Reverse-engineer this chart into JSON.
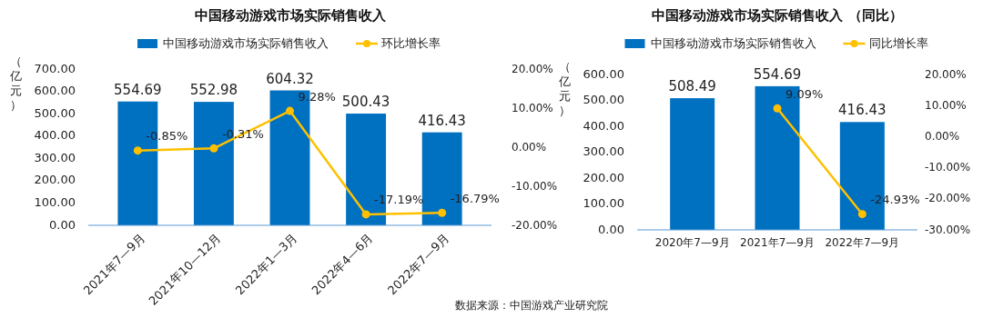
{
  "chart_data": [
    {
      "type": "bar",
      "title": "中国移动游戏市场实际销售收入",
      "ylabel": "（亿元）",
      "categories": [
        "2021年7—9月",
        "2021年10—12月",
        "2022年1—3月",
        "2022年4—6月",
        "2022年7—9月"
      ],
      "series": [
        {
          "name": "中国移动游戏市场实际销售收入",
          "color": "#0070c0",
          "values": [
            554.69,
            552.98,
            604.32,
            500.43,
            416.43
          ],
          "value_labels": [
            "554.69",
            "552.98",
            "604.32",
            "500.43",
            "416.43"
          ]
        },
        {
          "name": "环比增长率",
          "type": "line",
          "axis": "y2",
          "color": "#ffc000",
          "marker": "circle",
          "values": [
            -0.85,
            -0.31,
            9.28,
            -17.19,
            -16.79
          ],
          "value_labels": [
            "-0.85%",
            "-0.31%",
            "9.28%",
            "-17.19%",
            "-16.79%"
          ]
        }
      ],
      "ylim": [
        0,
        700
      ],
      "yticks": [
        {
          "value": 0,
          "label": "0.00"
        },
        {
          "value": 100,
          "label": "100.00"
        },
        {
          "value": 200,
          "label": "200.00"
        },
        {
          "value": 300,
          "label": "300.00"
        },
        {
          "value": 400,
          "label": "400.00"
        },
        {
          "value": 500,
          "label": "500.00"
        },
        {
          "value": 600,
          "label": "600.00"
        },
        {
          "value": 700,
          "label": "700.00"
        }
      ],
      "y2lim": [
        -20,
        20
      ],
      "y2ticks": [
        {
          "value": -20,
          "label": "-20.00%"
        },
        {
          "value": -10,
          "label": "-10.00%"
        },
        {
          "value": 0,
          "label": "0.00%"
        },
        {
          "value": 10,
          "label": "10.00%"
        },
        {
          "value": 20,
          "label": "20.00%"
        }
      ],
      "legend": "top",
      "grid": false
    },
    {
      "type": "bar",
      "title": "中国移动游戏市场实际销售收入 （同比）",
      "ylabel": "（亿元）",
      "categories": [
        "2020年7—9月",
        "2021年7—9月",
        "2022年7—9月"
      ],
      "series": [
        {
          "name": "中国移动游戏市场实际销售收入",
          "color": "#0070c0",
          "values": [
            508.49,
            554.69,
            416.43
          ],
          "value_labels": [
            "508.49",
            "554.69",
            "416.43"
          ]
        },
        {
          "name": "同比增长率",
          "type": "line",
          "axis": "y2",
          "color": "#ffc000",
          "marker": "circle",
          "values": [
            null,
            9.09,
            -24.93
          ],
          "value_labels": [
            null,
            "9.09%",
            "-24.93%"
          ]
        }
      ],
      "ylim": [
        0,
        600
      ],
      "yticks": [
        {
          "value": 0,
          "label": "0.00"
        },
        {
          "value": 100,
          "label": "100.00"
        },
        {
          "value": 200,
          "label": "200.00"
        },
        {
          "value": 300,
          "label": "300.00"
        },
        {
          "value": 400,
          "label": "400.00"
        },
        {
          "value": 500,
          "label": "500.00"
        },
        {
          "value": 600,
          "label": "600.00"
        }
      ],
      "y2lim": [
        -30,
        20
      ],
      "y2ticks": [
        {
          "value": -30,
          "label": "-30.00%"
        },
        {
          "value": -20,
          "label": "-20.00%"
        },
        {
          "value": -10,
          "label": "-10.00%"
        },
        {
          "value": 0,
          "label": "0.00%"
        },
        {
          "value": 10,
          "label": "10.00%"
        },
        {
          "value": 20,
          "label": "20.00%"
        }
      ],
      "legend": "top",
      "grid": false,
      "annotations": [
        "数据来源：中国游戏产业研究院"
      ]
    }
  ]
}
